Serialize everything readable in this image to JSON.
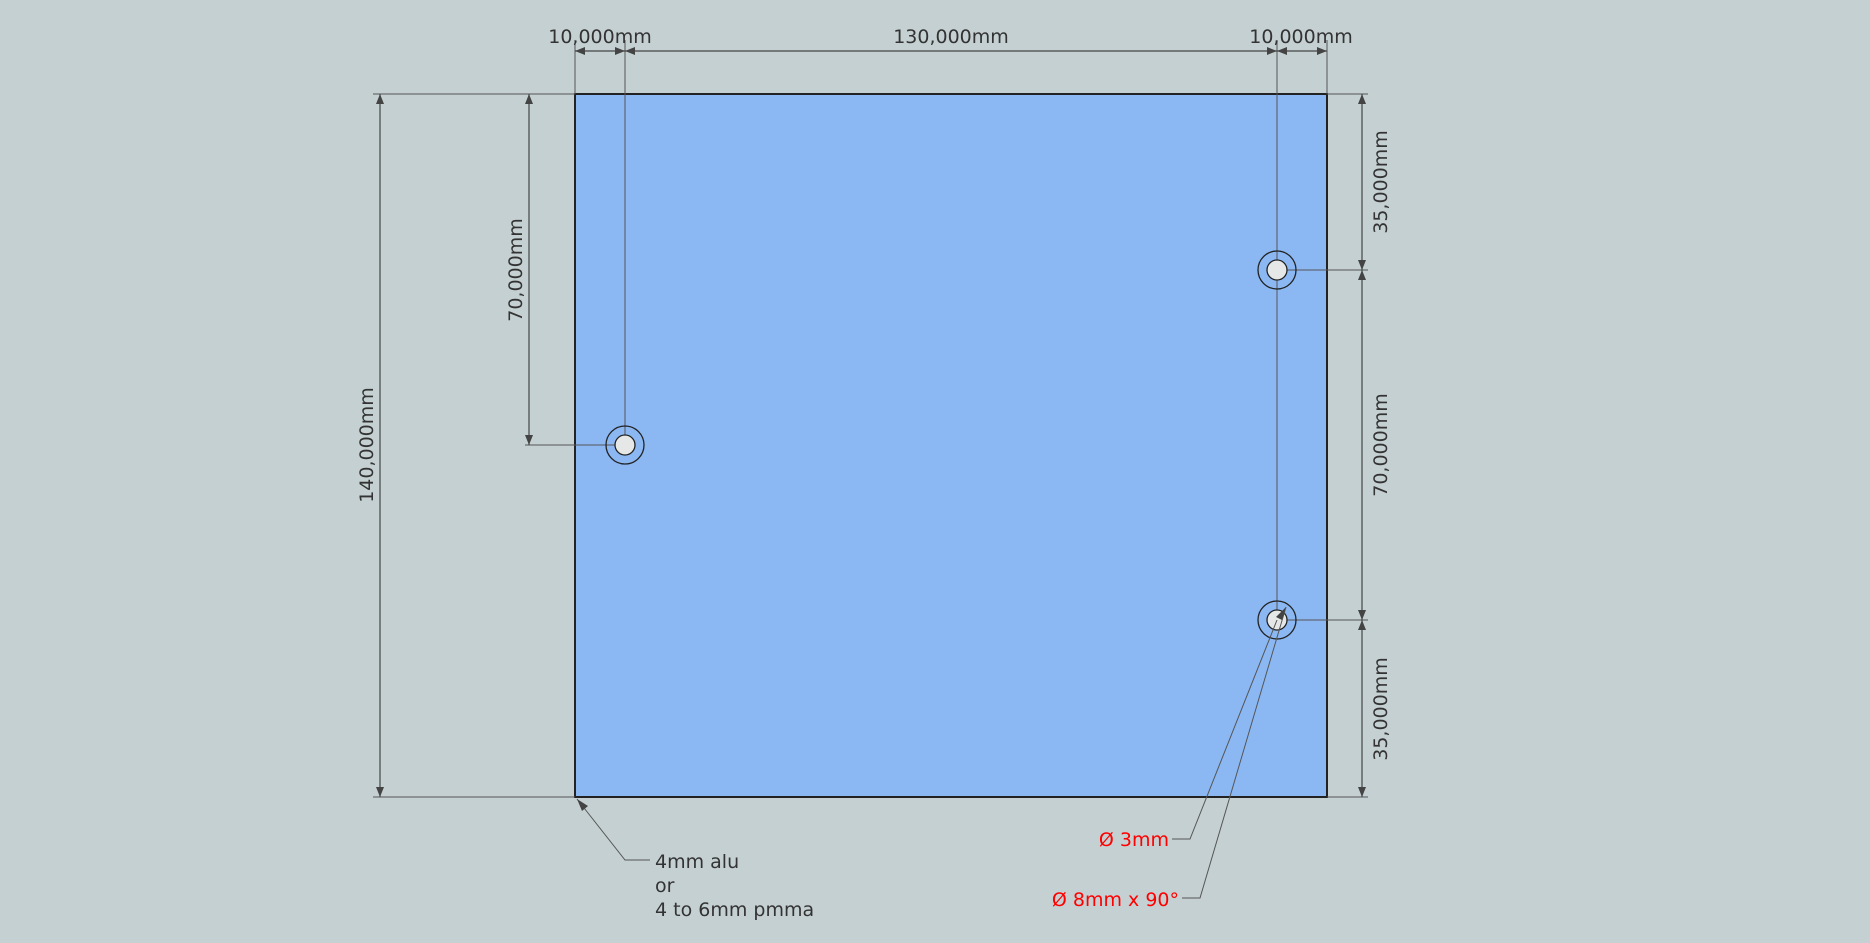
{
  "dimensions": {
    "top_left": "10,000mm",
    "top_middle": "130,000mm",
    "top_right": "10,000mm",
    "left_outer": "140,000mm",
    "left_inner": "70,000mm",
    "right_top": "35,000mm",
    "right_middle": "70,000mm",
    "right_bottom": "35,000mm"
  },
  "notes": {
    "material_line1": "4mm alu",
    "material_line2": "or",
    "material_line3": "4 to 6mm pmma",
    "hole_diameter": "Ø 3mm",
    "countersink": "Ø 8mm x 90°"
  },
  "colors": {
    "background": "#c5d0d2",
    "plate_fill": "#8bb8f3",
    "hole_fill": "#e6e8e8",
    "dimension": "#444444",
    "callout_red": "#ff0000"
  }
}
